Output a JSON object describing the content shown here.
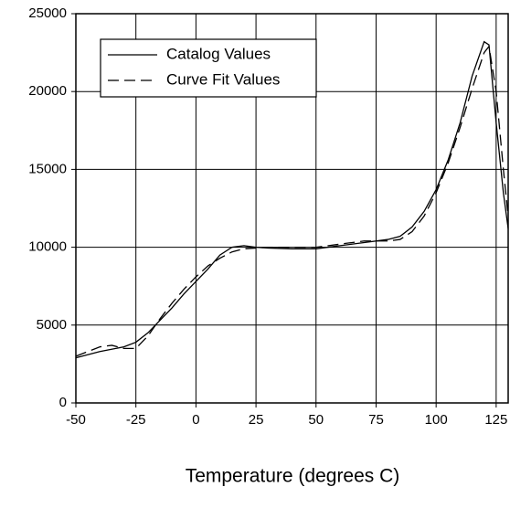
{
  "chart_data": {
    "type": "line",
    "x_label": "Temperature (degrees C)",
    "xlim": [
      -50,
      130
    ],
    "xticks": [
      -50,
      -25,
      0,
      25,
      50,
      75,
      100,
      125
    ],
    "ylim": [
      0,
      25000
    ],
    "yticks": [
      0,
      5000,
      10000,
      15000,
      20000,
      25000
    ],
    "grid": true,
    "legend": "upper left",
    "series": [
      {
        "name": "Catalog Values",
        "color": "#000000",
        "linestyle": "solid",
        "x": [
          -50,
          -40,
          -30,
          -25,
          -20,
          -15,
          -10,
          -5,
          0,
          5,
          10,
          15,
          20,
          25,
          30,
          40,
          50,
          60,
          70,
          80,
          85,
          90,
          95,
          100,
          105,
          110,
          115,
          120,
          122,
          125,
          128,
          130
        ],
        "values": [
          2900,
          3300,
          3600,
          3900,
          4500,
          5300,
          6100,
          7000,
          7800,
          8600,
          9500,
          10000,
          10100,
          10000,
          9950,
          9900,
          9900,
          10100,
          10300,
          10500,
          10700,
          11300,
          12300,
          13700,
          15600,
          18000,
          21000,
          23200,
          23000,
          18000,
          13500,
          11200
        ]
      },
      {
        "name": "Curve Fit Values",
        "color": "#000000",
        "linestyle": "dashed",
        "x": [
          -50,
          -40,
          -35,
          -30,
          -25,
          -20,
          -15,
          -10,
          -5,
          0,
          5,
          10,
          15,
          20,
          30,
          40,
          50,
          60,
          70,
          80,
          85,
          90,
          95,
          100,
          105,
          110,
          115,
          120,
          122,
          125,
          128,
          130
        ],
        "values": [
          3000,
          3600,
          3700,
          3500,
          3500,
          4300,
          5400,
          6400,
          7300,
          8100,
          8800,
          9300,
          9700,
          9900,
          10000,
          10000,
          10000,
          10200,
          10400,
          10400,
          10500,
          11000,
          12000,
          13500,
          15400,
          17700,
          20200,
          22500,
          22900,
          20000,
          15000,
          12000
        ]
      }
    ]
  }
}
